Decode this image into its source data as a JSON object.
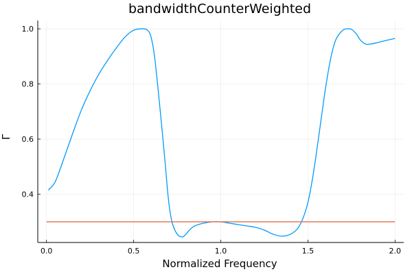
{
  "chart_data": {
    "type": "line",
    "title": "bandwidthCounterWeighted",
    "xlabel": "Normalized Frequency",
    "ylabel": "Γ",
    "xlim": [
      -0.05,
      2.05
    ],
    "ylim": [
      0.225,
      1.03
    ],
    "grid": true,
    "legend": "none",
    "xticks": [
      {
        "value": 0.0,
        "label": "0.0"
      },
      {
        "value": 0.5,
        "label": "0.5"
      },
      {
        "value": 1.0,
        "label": "1.0"
      },
      {
        "value": 1.5,
        "label": "1.5"
      },
      {
        "value": 2.0,
        "label": "2.0"
      }
    ],
    "yticks": [
      {
        "value": 0.4,
        "label": "0.4"
      },
      {
        "value": 0.6,
        "label": "0.6"
      },
      {
        "value": 0.8,
        "label": "0.8"
      },
      {
        "value": 1.0,
        "label": "1.0"
      }
    ],
    "series": [
      {
        "color": "#009AFA",
        "x": [
          0.01,
          0.05,
          0.1,
          0.15,
          0.2,
          0.25,
          0.3,
          0.35,
          0.4,
          0.45,
          0.5,
          0.55,
          0.58,
          0.6,
          0.62,
          0.65,
          0.68,
          0.7,
          0.72,
          0.75,
          0.78,
          0.8,
          0.82,
          0.85,
          0.9,
          0.95,
          1.0,
          1.05,
          1.1,
          1.15,
          1.2,
          1.25,
          1.3,
          1.35,
          1.4,
          1.44,
          1.47,
          1.5,
          1.53,
          1.56,
          1.6,
          1.63,
          1.66,
          1.7,
          1.73,
          1.75,
          1.78,
          1.8,
          1.83,
          1.86,
          1.9,
          1.95,
          2.0
        ],
        "y": [
          0.415,
          0.445,
          0.53,
          0.62,
          0.705,
          0.775,
          0.835,
          0.885,
          0.93,
          0.97,
          0.995,
          1.0,
          0.995,
          0.97,
          0.9,
          0.72,
          0.52,
          0.38,
          0.3,
          0.255,
          0.245,
          0.255,
          0.27,
          0.285,
          0.295,
          0.3,
          0.3,
          0.295,
          0.29,
          0.285,
          0.28,
          0.27,
          0.255,
          0.248,
          0.255,
          0.275,
          0.31,
          0.37,
          0.47,
          0.6,
          0.78,
          0.89,
          0.96,
          0.995,
          1.0,
          0.998,
          0.98,
          0.96,
          0.945,
          0.945,
          0.95,
          0.958,
          0.965
        ]
      },
      {
        "color": "#E26F46",
        "x": [
          0.0,
          2.0
        ],
        "y": [
          0.3,
          0.3
        ]
      }
    ]
  }
}
